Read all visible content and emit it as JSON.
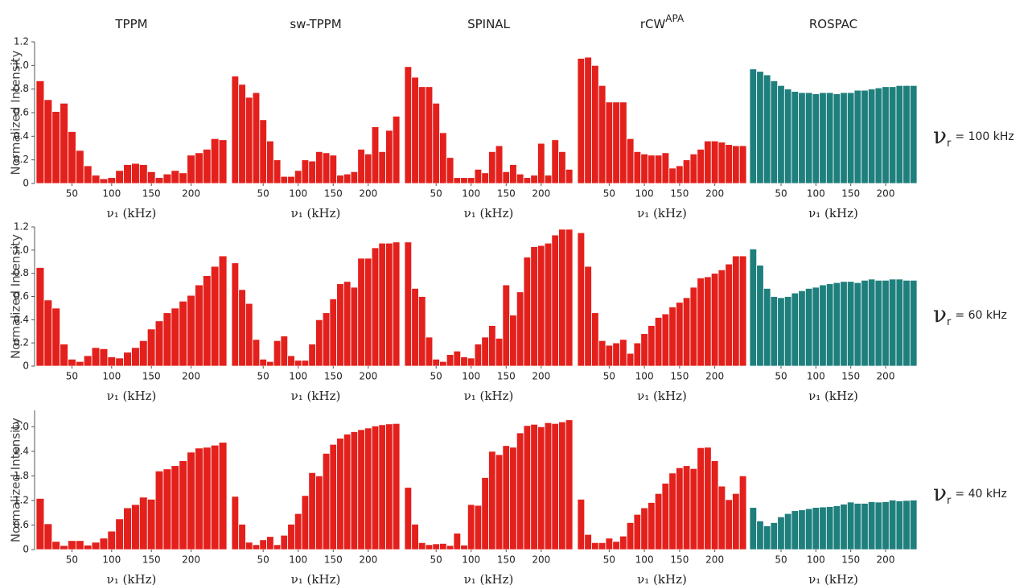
{
  "chart_data": [
    {
      "type": "bar",
      "title": "TPPM",
      "ylabel": "Normalized Intensity",
      "xlabel": "ν₁ (kHz)",
      "color": "#e3201c",
      "x": [
        10,
        20,
        30,
        40,
        50,
        60,
        70,
        80,
        90,
        100,
        110,
        120,
        130,
        140,
        150,
        160,
        170,
        180,
        190,
        200,
        210,
        220,
        230,
        240
      ],
      "values": [
        0.87,
        0.71,
        0.61,
        0.68,
        0.44,
        0.28,
        0.15,
        0.07,
        0.04,
        0.05,
        0.11,
        0.16,
        0.17,
        0.16,
        0.1,
        0.05,
        0.08,
        0.11,
        0.09,
        0.24,
        0.26,
        0.29,
        0.38,
        0.37
      ],
      "xlim": [
        5,
        245
      ],
      "xticks": [
        50,
        100,
        150,
        200
      ],
      "ylim": [
        0,
        1.2
      ],
      "yticks": [
        0,
        0.2,
        0.4,
        0.6,
        0.8,
        {
          "value": 1,
          "label": "1.0"
        },
        1.2
      ]
    },
    {
      "type": "bar",
      "title": "sw-TPPM",
      "xlabel": "ν₁ (kHz)",
      "color": "#e3201c",
      "x": [
        10,
        20,
        30,
        40,
        50,
        60,
        70,
        80,
        90,
        100,
        110,
        120,
        130,
        140,
        150,
        160,
        170,
        180,
        190,
        200,
        210,
        220,
        230,
        240
      ],
      "values": [
        0.91,
        0.84,
        0.73,
        0.77,
        0.54,
        0.36,
        0.2,
        0.06,
        0.06,
        0.11,
        0.2,
        0.19,
        0.27,
        0.26,
        0.24,
        0.07,
        0.08,
        0.1,
        0.29,
        0.25,
        0.48,
        0.27,
        0.45,
        0.57
      ],
      "xlim": [
        5,
        245
      ],
      "xticks": [
        50,
        100,
        150,
        200
      ],
      "ylim": [
        0,
        1.2
      ]
    },
    {
      "type": "bar",
      "title": "SPINAL",
      "xlabel": "ν₁ (kHz)",
      "color": "#e3201c",
      "x": [
        10,
        20,
        30,
        40,
        50,
        60,
        70,
        80,
        90,
        100,
        110,
        120,
        130,
        140,
        150,
        160,
        170,
        180,
        190,
        200,
        210,
        220,
        230,
        240
      ],
      "values": [
        0.99,
        0.9,
        0.82,
        0.82,
        0.68,
        0.43,
        0.22,
        0.05,
        0.05,
        0.05,
        0.12,
        0.09,
        0.27,
        0.32,
        0.1,
        0.16,
        0.08,
        0.05,
        0.07,
        0.34,
        0.07,
        0.37,
        0.27,
        0.12
      ],
      "xlim": [
        5,
        245
      ],
      "xticks": [
        50,
        100,
        150,
        200
      ],
      "ylim": [
        0,
        1.2
      ]
    },
    {
      "type": "bar",
      "title": "rCW",
      "title_sup": "APA",
      "xlabel": "ν₁ (kHz)",
      "color": "#e3201c",
      "x": [
        10,
        20,
        30,
        40,
        50,
        60,
        70,
        80,
        90,
        100,
        110,
        120,
        130,
        140,
        150,
        160,
        170,
        180,
        190,
        200,
        210,
        220,
        230,
        240
      ],
      "values": [
        1.06,
        1.07,
        1.0,
        0.83,
        0.69,
        0.69,
        0.69,
        0.38,
        0.27,
        0.25,
        0.24,
        0.24,
        0.26,
        0.13,
        0.15,
        0.2,
        0.25,
        0.29,
        0.36,
        0.36,
        0.35,
        0.33,
        0.32,
        0.32
      ],
      "xlim": [
        5,
        245
      ],
      "xticks": [
        50,
        100,
        150,
        200
      ],
      "ylim": [
        0,
        1.2
      ]
    },
    {
      "type": "bar",
      "title": "ROSPAC",
      "xlabel": "ν₁ (kHz)",
      "color": "#1e7f7c",
      "x": [
        10,
        20,
        30,
        40,
        50,
        60,
        70,
        80,
        90,
        100,
        110,
        120,
        130,
        140,
        150,
        160,
        170,
        180,
        190,
        200,
        210,
        220,
        230,
        240
      ],
      "values": [
        0.97,
        0.95,
        0.92,
        0.87,
        0.83,
        0.8,
        0.78,
        0.77,
        0.77,
        0.76,
        0.77,
        0.77,
        0.76,
        0.77,
        0.77,
        0.79,
        0.79,
        0.8,
        0.81,
        0.82,
        0.82,
        0.83,
        0.83,
        0.83
      ],
      "xlim": [
        5,
        245
      ],
      "xticks": [
        50,
        100,
        150,
        200
      ],
      "ylim": [
        0,
        1.2
      ]
    },
    {
      "type": "bar",
      "ylabel": "Normalized Intensity",
      "xlabel": "ν₁ (kHz)",
      "color": "#e3201c",
      "x": [
        10,
        20,
        30,
        40,
        50,
        60,
        70,
        80,
        90,
        100,
        110,
        120,
        130,
        140,
        150,
        160,
        170,
        180,
        190,
        200,
        210,
        220,
        230,
        240
      ],
      "values": [
        0.85,
        0.57,
        0.5,
        0.19,
        0.06,
        0.04,
        0.09,
        0.16,
        0.15,
        0.08,
        0.07,
        0.12,
        0.16,
        0.22,
        0.32,
        0.39,
        0.46,
        0.5,
        0.56,
        0.61,
        0.7,
        0.78,
        0.86,
        0.95
      ],
      "xlim": [
        5,
        245
      ],
      "xticks": [
        50,
        100,
        150,
        200
      ],
      "ylim": [
        0,
        1.2
      ],
      "yticks": [
        0,
        0.2,
        0.4,
        0.6,
        0.8,
        {
          "value": 1,
          "label": "1.0"
        },
        1.2
      ]
    },
    {
      "type": "bar",
      "xlabel": "ν₁ (kHz)",
      "color": "#e3201c",
      "x": [
        10,
        20,
        30,
        40,
        50,
        60,
        70,
        80,
        90,
        100,
        110,
        120,
        130,
        140,
        150,
        160,
        170,
        180,
        190,
        200,
        210,
        220,
        230,
        240
      ],
      "values": [
        0.89,
        0.66,
        0.54,
        0.23,
        0.06,
        0.04,
        0.22,
        0.26,
        0.09,
        0.05,
        0.05,
        0.19,
        0.4,
        0.46,
        0.58,
        0.71,
        0.73,
        0.68,
        0.93,
        0.93,
        1.02,
        1.06,
        1.06,
        1.07
      ],
      "xlim": [
        5,
        245
      ],
      "xticks": [
        50,
        100,
        150,
        200
      ],
      "ylim": [
        0,
        1.2
      ]
    },
    {
      "type": "bar",
      "xlabel": "ν₁ (kHz)",
      "color": "#e3201c",
      "x": [
        10,
        20,
        30,
        40,
        50,
        60,
        70,
        80,
        90,
        100,
        110,
        120,
        130,
        140,
        150,
        160,
        170,
        180,
        190,
        200,
        210,
        220,
        230,
        240
      ],
      "values": [
        1.07,
        0.67,
        0.6,
        0.25,
        0.06,
        0.04,
        0.1,
        0.13,
        0.08,
        0.07,
        0.19,
        0.25,
        0.35,
        0.24,
        0.7,
        0.44,
        0.64,
        0.94,
        1.03,
        1.04,
        1.06,
        1.13,
        1.18,
        1.18
      ],
      "xlim": [
        5,
        245
      ],
      "xticks": [
        50,
        100,
        150,
        200
      ],
      "ylim": [
        0,
        1.2
      ]
    },
    {
      "type": "bar",
      "xlabel": "ν₁ (kHz)",
      "color": "#e3201c",
      "x": [
        10,
        20,
        30,
        40,
        50,
        60,
        70,
        80,
        90,
        100,
        110,
        120,
        130,
        140,
        150,
        160,
        170,
        180,
        190,
        200,
        210,
        220,
        230,
        240
      ],
      "values": [
        1.15,
        0.86,
        0.46,
        0.22,
        0.18,
        0.2,
        0.23,
        0.11,
        0.2,
        0.28,
        0.35,
        0.42,
        0.45,
        0.51,
        0.55,
        0.59,
        0.68,
        0.76,
        0.77,
        0.8,
        0.83,
        0.88,
        0.95,
        0.95
      ],
      "xlim": [
        5,
        245
      ],
      "xticks": [
        50,
        100,
        150,
        200
      ],
      "ylim": [
        0,
        1.2
      ]
    },
    {
      "type": "bar",
      "xlabel": "ν₁ (kHz)",
      "color": "#1e7f7c",
      "x": [
        10,
        20,
        30,
        40,
        50,
        60,
        70,
        80,
        90,
        100,
        110,
        120,
        130,
        140,
        150,
        160,
        170,
        180,
        190,
        200,
        210,
        220,
        230,
        240
      ],
      "values": [
        1.01,
        0.87,
        0.67,
        0.6,
        0.59,
        0.6,
        0.63,
        0.65,
        0.67,
        0.68,
        0.7,
        0.71,
        0.72,
        0.73,
        0.73,
        0.72,
        0.74,
        0.75,
        0.74,
        0.74,
        0.75,
        0.75,
        0.74,
        0.74
      ],
      "xlim": [
        5,
        245
      ],
      "xticks": [
        50,
        100,
        150,
        200
      ],
      "ylim": [
        0,
        1.2
      ]
    },
    {
      "type": "bar",
      "ylabel": "Normalized Intensity",
      "xlabel": "ν₁ (kHz)",
      "color": "#e3201c",
      "x": [
        10,
        20,
        30,
        40,
        50,
        60,
        70,
        80,
        90,
        100,
        110,
        120,
        130,
        140,
        150,
        160,
        170,
        180,
        190,
        200,
        210,
        220,
        230,
        240
      ],
      "values": [
        1.25,
        0.63,
        0.2,
        0.1,
        0.22,
        0.22,
        0.11,
        0.18,
        0.28,
        0.45,
        0.75,
        1.02,
        1.1,
        1.28,
        1.23,
        1.92,
        1.97,
        2.05,
        2.17,
        2.38,
        2.48,
        2.5,
        2.55,
        2.62
      ],
      "xlim": [
        5,
        245
      ],
      "xticks": [
        50,
        100,
        150,
        200
      ],
      "ylim": [
        0,
        3.4
      ],
      "yticks": [
        0,
        0.6,
        1.2,
        1.8,
        2.4,
        {
          "value": 3,
          "label": "3.0"
        }
      ]
    },
    {
      "type": "bar",
      "xlabel": "ν₁ (kHz)",
      "color": "#e3201c",
      "x": [
        10,
        20,
        30,
        40,
        50,
        60,
        70,
        80,
        90,
        100,
        110,
        120,
        130,
        140,
        150,
        160,
        170,
        180,
        190,
        200,
        210,
        220,
        230,
        240
      ],
      "values": [
        1.3,
        0.62,
        0.18,
        0.12,
        0.24,
        0.32,
        0.12,
        0.35,
        0.62,
        0.88,
        1.32,
        1.88,
        1.8,
        2.35,
        2.57,
        2.72,
        2.82,
        2.88,
        2.93,
        2.97,
        3.02,
        3.05,
        3.07,
        3.08
      ],
      "xlim": [
        5,
        245
      ],
      "xticks": [
        50,
        100,
        150,
        200
      ],
      "ylim": [
        0,
        3.4
      ]
    },
    {
      "type": "bar",
      "xlabel": "ν₁ (kHz)",
      "color": "#e3201c",
      "x": [
        10,
        20,
        30,
        40,
        50,
        60,
        70,
        80,
        90,
        100,
        110,
        120,
        130,
        140,
        150,
        160,
        170,
        180,
        190,
        200,
        210,
        220,
        230,
        240
      ],
      "values": [
        1.52,
        0.62,
        0.17,
        0.12,
        0.14,
        0.15,
        0.1,
        0.4,
        0.11,
        1.1,
        1.08,
        1.76,
        2.4,
        2.32,
        2.54,
        2.5,
        2.85,
        3.03,
        3.06,
        3.0,
        3.1,
        3.08,
        3.12,
        3.17
      ],
      "xlim": [
        5,
        245
      ],
      "xticks": [
        50,
        100,
        150,
        200
      ],
      "ylim": [
        0,
        3.4
      ]
    },
    {
      "type": "bar",
      "xlabel": "ν₁ (kHz)",
      "color": "#e3201c",
      "x": [
        10,
        20,
        30,
        40,
        50,
        60,
        70,
        80,
        90,
        100,
        110,
        120,
        130,
        140,
        150,
        160,
        170,
        180,
        190,
        200,
        210,
        220,
        230,
        240
      ],
      "values": [
        1.23,
        0.37,
        0.17,
        0.17,
        0.28,
        0.2,
        0.33,
        0.66,
        0.86,
        1.02,
        1.15,
        1.37,
        1.62,
        1.87,
        2.0,
        2.05,
        1.98,
        2.49,
        2.5,
        2.17,
        1.55,
        1.22,
        1.37,
        1.8
      ],
      "xlim": [
        5,
        245
      ],
      "xticks": [
        50,
        100,
        150,
        200
      ],
      "ylim": [
        0,
        3.4
      ]
    },
    {
      "type": "bar",
      "xlabel": "ν₁ (kHz)",
      "color": "#1e7f7c",
      "x": [
        10,
        20,
        30,
        40,
        50,
        60,
        70,
        80,
        90,
        100,
        110,
        120,
        130,
        140,
        150,
        160,
        170,
        180,
        190,
        200,
        210,
        220,
        230,
        240
      ],
      "values": [
        1.03,
        0.7,
        0.58,
        0.66,
        0.8,
        0.88,
        0.95,
        0.97,
        1.0,
        1.03,
        1.04,
        1.05,
        1.07,
        1.11,
        1.16,
        1.13,
        1.13,
        1.17,
        1.16,
        1.17,
        1.21,
        1.19,
        1.2,
        1.21
      ],
      "xlim": [
        5,
        245
      ],
      "xticks": [
        50,
        100,
        150,
        200
      ],
      "ylim": [
        0,
        3.4
      ]
    }
  ],
  "row_labels": [
    {
      "symbol": "ν",
      "sub": "r",
      "text": "= 100 kHz"
    },
    {
      "symbol": "ν",
      "sub": "r",
      "text": "= 60 kHz"
    },
    {
      "symbol": "ν",
      "sub": "r",
      "text": "= 40 kHz"
    }
  ]
}
